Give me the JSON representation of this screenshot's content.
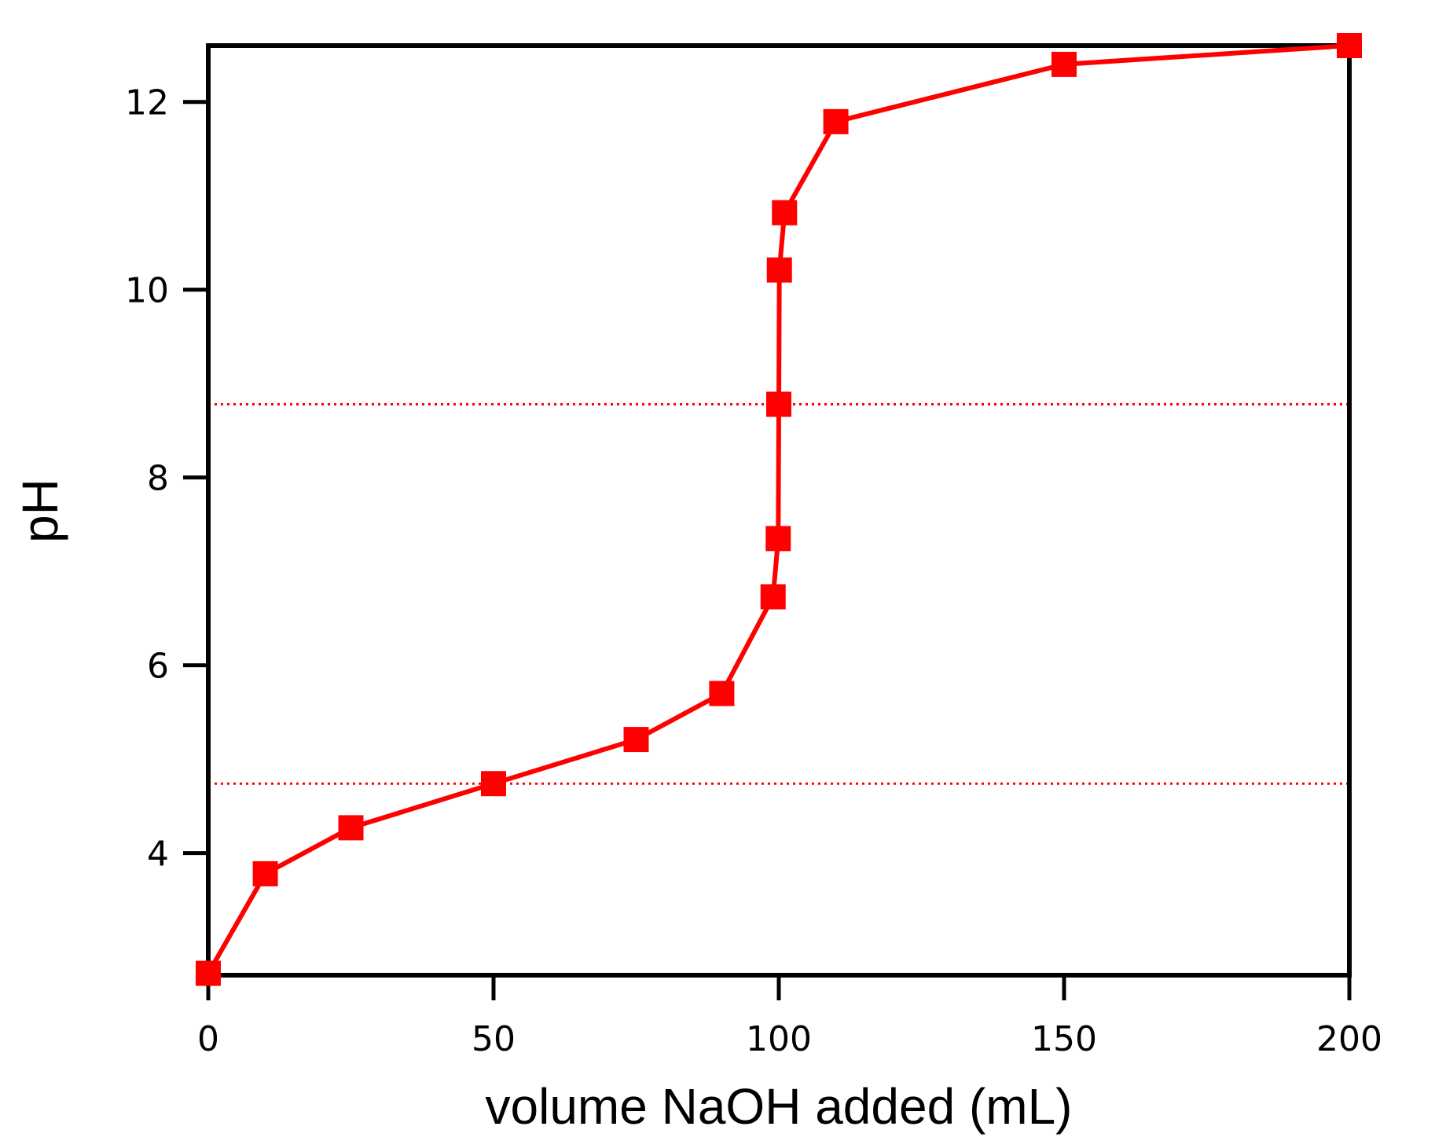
{
  "chart_data": {
    "type": "line",
    "title": "",
    "xlabel": "volume NaOH added (mL)",
    "ylabel": "pH",
    "xlim": [
      0,
      200
    ],
    "ylim": [
      2.7,
      12.6
    ],
    "x_ticks": [
      0,
      50,
      100,
      150,
      200
    ],
    "y_ticks": [
      4,
      6,
      8,
      10,
      12
    ],
    "grid": false,
    "legend": "none",
    "series": [
      {
        "color": "#ff0000",
        "marker": "square",
        "x": [
          0,
          10,
          25,
          50,
          75,
          90,
          99,
          99.9,
          100,
          100.1,
          101,
          110,
          150,
          200
        ],
        "y": [
          2.72,
          3.78,
          4.27,
          4.74,
          5.21,
          5.7,
          6.73,
          7.35,
          8.78,
          10.21,
          10.82,
          11.79,
          12.4,
          12.6
        ]
      }
    ],
    "reference_lines": [
      {
        "orientation": "horizontal",
        "y": 8.78,
        "style": "dotted",
        "color": "#ff0000"
      },
      {
        "orientation": "horizontal",
        "y": 4.74,
        "style": "dotted",
        "color": "#ff0000"
      }
    ]
  }
}
